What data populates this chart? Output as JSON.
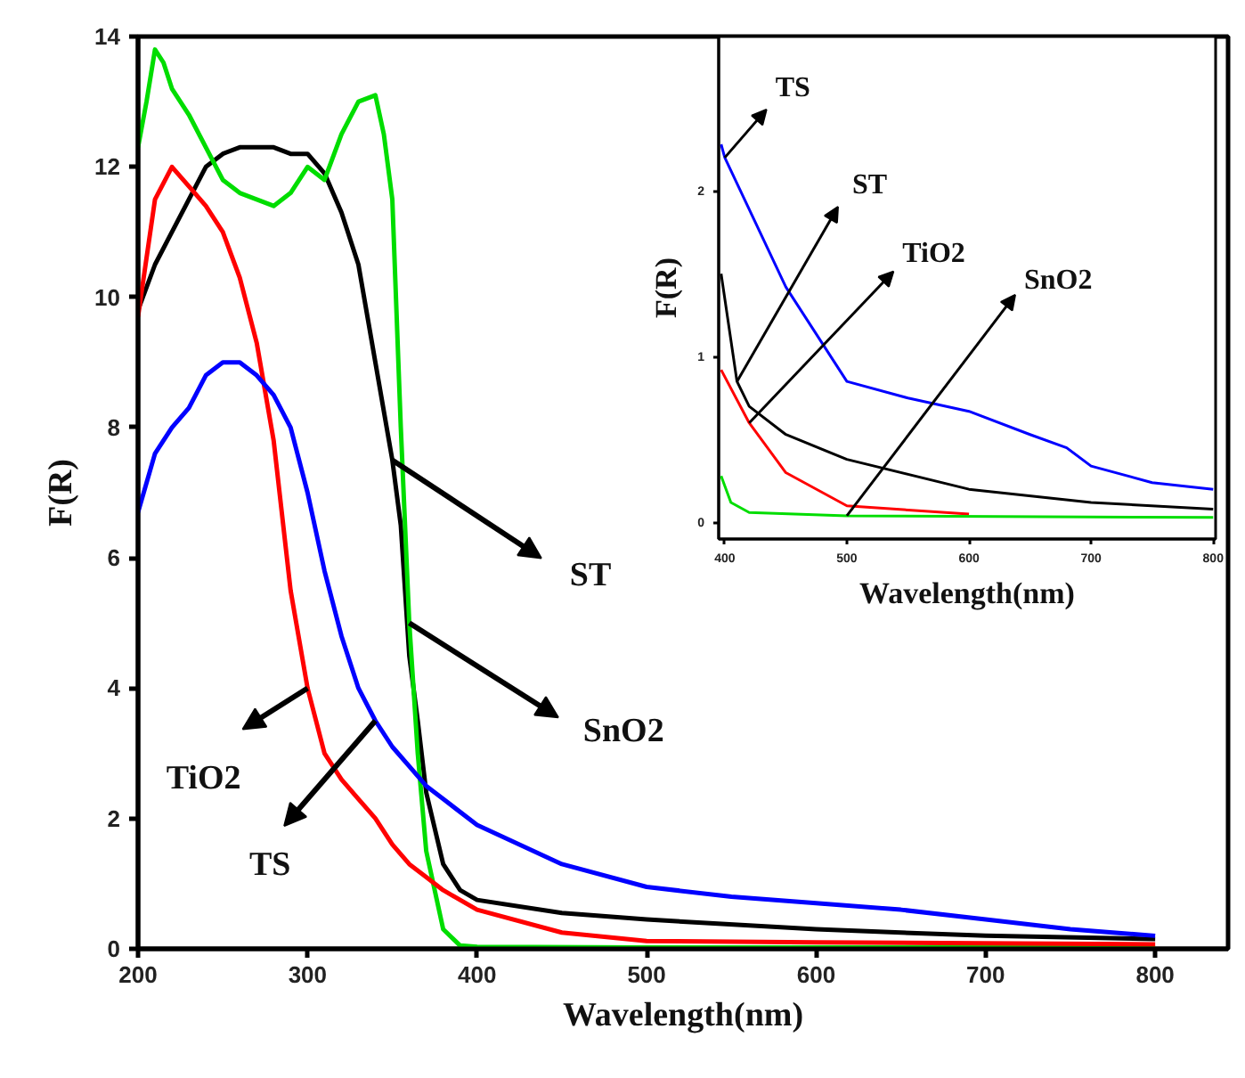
{
  "chart_data": [
    {
      "type": "line",
      "xlabel": "Wavelength(nm)",
      "ylabel": "F(R)",
      "xlim": [
        200,
        843
      ],
      "ylim": [
        0,
        14
      ],
      "xticks": [
        200,
        300,
        400,
        500,
        600,
        700,
        800
      ],
      "yticks": [
        0,
        2,
        4,
        6,
        8,
        10,
        12,
        14
      ],
      "grid": false,
      "annotations": [
        {
          "text": "ST",
          "x": 350,
          "y": 7.5
        },
        {
          "text": "SnO2",
          "x": 360,
          "y": 5
        },
        {
          "text": "TiO2",
          "x": 300,
          "y": 4
        },
        {
          "text": "TS",
          "x": 340,
          "y": 3.5
        }
      ],
      "series": [
        {
          "color": "#000000",
          "x": [
            200,
            210,
            220,
            230,
            240,
            250,
            260,
            270,
            280,
            290,
            300,
            310,
            320,
            330,
            340,
            350,
            355,
            360,
            365,
            370,
            380,
            390,
            400,
            450,
            500,
            600,
            700,
            800
          ],
          "values": [
            9.8,
            10.5,
            11,
            11.5,
            12,
            12.2,
            12.3,
            12.3,
            12.3,
            12.2,
            12.2,
            11.9,
            11.3,
            10.5,
            9,
            7.5,
            6.5,
            4.5,
            3.5,
            2.4,
            1.3,
            0.9,
            0.75,
            0.55,
            0.45,
            0.3,
            0.2,
            0.15
          ]
        },
        {
          "color": "#00dd00",
          "x": [
            200,
            205,
            210,
            215,
            220,
            230,
            240,
            250,
            260,
            270,
            280,
            290,
            300,
            310,
            320,
            330,
            340,
            345,
            350,
            355,
            360,
            365,
            370,
            380,
            390,
            400,
            500,
            800
          ],
          "values": [
            12.3,
            13,
            13.8,
            13.6,
            13.2,
            12.8,
            12.3,
            11.8,
            11.6,
            11.5,
            11.4,
            11.6,
            12,
            11.8,
            12.5,
            13,
            13.1,
            12.5,
            11.5,
            8,
            5,
            3,
            1.5,
            0.3,
            0.05,
            0.03,
            0.02,
            0.02
          ]
        },
        {
          "color": "#ff0000",
          "x": [
            200,
            210,
            220,
            230,
            240,
            250,
            260,
            270,
            280,
            290,
            300,
            310,
            320,
            330,
            340,
            350,
            360,
            370,
            380,
            400,
            450,
            500,
            600,
            800
          ],
          "values": [
            9.7,
            11.5,
            12,
            11.7,
            11.4,
            11,
            10.3,
            9.3,
            7.8,
            5.5,
            4,
            3,
            2.6,
            2.3,
            2,
            1.6,
            1.3,
            1.1,
            0.9,
            0.6,
            0.25,
            0.12,
            0.1,
            0.07
          ]
        },
        {
          "color": "#0000ff",
          "x": [
            200,
            210,
            220,
            230,
            240,
            250,
            260,
            270,
            280,
            290,
            300,
            310,
            320,
            330,
            340,
            350,
            360,
            370,
            380,
            400,
            450,
            500,
            550,
            600,
            650,
            700,
            750,
            800
          ],
          "values": [
            6.7,
            7.6,
            8,
            8.3,
            8.8,
            9,
            9,
            8.8,
            8.5,
            8,
            7,
            5.8,
            4.8,
            4,
            3.5,
            3.1,
            2.8,
            2.5,
            2.3,
            1.9,
            1.3,
            0.95,
            0.8,
            0.7,
            0.6,
            0.45,
            0.3,
            0.2
          ]
        }
      ]
    },
    {
      "type": "line",
      "xlabel": "Wavelength(nm)",
      "ylabel": "F(R)",
      "xlim": [
        395,
        802
      ],
      "ylim": [
        -0.1,
        2.93
      ],
      "xticks": [
        400,
        500,
        600,
        700,
        800
      ],
      "yticks": [
        0,
        1,
        2
      ],
      "grid": false,
      "annotations": [
        {
          "text": "TS",
          "x": 400,
          "y": 2.2
        },
        {
          "text": "ST",
          "x": 410,
          "y": 0.85
        },
        {
          "text": "TiO2",
          "x": 420,
          "y": 0.6
        },
        {
          "text": "SnO2",
          "x": 500,
          "y": 0.04
        }
      ],
      "series": [
        {
          "color": "#0000ff",
          "x": [
            397,
            400,
            450,
            500,
            550,
            600,
            650,
            680,
            700,
            750,
            800
          ],
          "values": [
            2.28,
            2.2,
            1.42,
            0.85,
            0.75,
            0.67,
            0.53,
            0.45,
            0.34,
            0.24,
            0.2
          ]
        },
        {
          "color": "#000000",
          "x": [
            397,
            410,
            420,
            450,
            500,
            600,
            700,
            800
          ],
          "values": [
            1.5,
            0.85,
            0.7,
            0.53,
            0.38,
            0.2,
            0.12,
            0.08
          ]
        },
        {
          "color": "#ff0000",
          "x": [
            397,
            420,
            450,
            500,
            600
          ],
          "values": [
            0.92,
            0.6,
            0.3,
            0.1,
            0.05
          ]
        },
        {
          "color": "#00dd00",
          "x": [
            397,
            405,
            420,
            500,
            800
          ],
          "values": [
            0.28,
            0.12,
            0.06,
            0.04,
            0.03
          ]
        }
      ]
    }
  ]
}
